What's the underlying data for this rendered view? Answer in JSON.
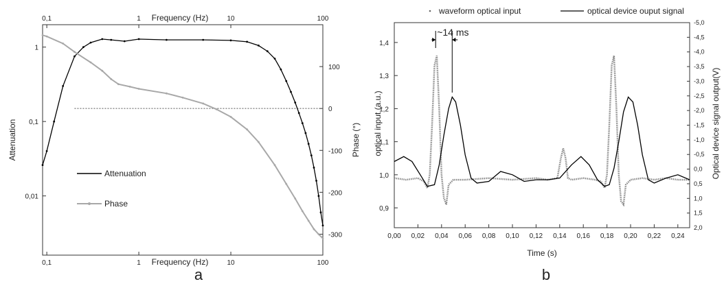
{
  "chart_data": [
    {
      "type": "line",
      "panel_label": "a",
      "xlabel_bottom": "Frequency (Hz)",
      "xlabel_top": "Frequency (Hz)",
      "ylabel_left": "Attenuation",
      "ylabel_right": "Phase (°)",
      "x_scale": "log",
      "xlim": [
        0.09,
        100
      ],
      "x_ticks": [
        {
          "v": 0.1,
          "label": "0,1"
        },
        {
          "v": 1,
          "label": "1"
        },
        {
          "v": 10,
          "label": "10"
        },
        {
          "v": 100,
          "label": "100"
        }
      ],
      "y_left_scale": "log",
      "y_left_lim": [
        0.0016,
        2
      ],
      "y_left_ticks": [
        {
          "v": 1,
          "label": "1"
        },
        {
          "v": 0.1,
          "label": "0,1"
        },
        {
          "v": 0.01,
          "label": "0,01"
        }
      ],
      "y_right_lim": [
        -350,
        200
      ],
      "y_right_ticks": [
        {
          "v": 100,
          "label": "100"
        },
        {
          "v": 0,
          "label": "0"
        },
        {
          "v": -100,
          "label": "-100"
        },
        {
          "v": -200,
          "label": "-200"
        },
        {
          "v": -300,
          "label": "-300"
        }
      ],
      "reference_line": {
        "axis": "right",
        "y": 0,
        "style": "dotted"
      },
      "legend_position": "lower-left",
      "series": [
        {
          "name": "Attenuation",
          "axis": "left",
          "color": "#000000",
          "x": [
            0.09,
            0.1,
            0.12,
            0.15,
            0.2,
            0.25,
            0.3,
            0.4,
            0.5,
            0.7,
            1,
            2,
            5,
            10,
            15,
            20,
            25,
            30,
            35,
            40,
            45,
            50,
            55,
            60,
            65,
            70,
            75,
            80,
            85,
            90,
            95,
            100
          ],
          "y": [
            0.026,
            0.04,
            0.1,
            0.3,
            0.75,
            1.0,
            1.15,
            1.28,
            1.25,
            1.2,
            1.28,
            1.25,
            1.25,
            1.23,
            1.18,
            1.05,
            0.88,
            0.7,
            0.5,
            0.35,
            0.25,
            0.18,
            0.13,
            0.095,
            0.07,
            0.05,
            0.035,
            0.024,
            0.016,
            0.01,
            0.006,
            0.004
          ]
        },
        {
          "name": "Phase",
          "axis": "right",
          "color": "#a8a8a8",
          "x": [
            0.09,
            0.1,
            0.15,
            0.2,
            0.3,
            0.4,
            0.5,
            0.6,
            0.8,
            1,
            2,
            3,
            5,
            7,
            10,
            15,
            20,
            30,
            40,
            50,
            60,
            70,
            80,
            90,
            100
          ],
          "y": [
            175,
            172,
            155,
            135,
            110,
            90,
            70,
            58,
            52,
            47,
            36,
            26,
            12,
            -2,
            -20,
            -50,
            -80,
            -135,
            -180,
            -215,
            -245,
            -268,
            -288,
            -300,
            -310
          ]
        }
      ]
    },
    {
      "type": "line",
      "panel_label": "b",
      "xlabel": "Time (s)",
      "ylabel_left": "optical input (a.u.)",
      "ylabel_right": "Optical device signal output(V)",
      "annotation": "~14 ms",
      "xlim": [
        0.0,
        0.25
      ],
      "x_ticks": [
        {
          "v": 0.0,
          "label": "0,00"
        },
        {
          "v": 0.02,
          "label": "0,02"
        },
        {
          "v": 0.04,
          "label": "0,04"
        },
        {
          "v": 0.06,
          "label": "0,06"
        },
        {
          "v": 0.08,
          "label": "0,08"
        },
        {
          "v": 0.1,
          "label": "0,10"
        },
        {
          "v": 0.12,
          "label": "0,12"
        },
        {
          "v": 0.14,
          "label": "0,14"
        },
        {
          "v": 0.16,
          "label": "0,16"
        },
        {
          "v": 0.18,
          "label": "0,18"
        },
        {
          "v": 0.2,
          "label": "0,20"
        },
        {
          "v": 0.22,
          "label": "0,22"
        },
        {
          "v": 0.24,
          "label": "0,24"
        }
      ],
      "y_left_lim": [
        0.84,
        1.46
      ],
      "y_left_ticks": [
        {
          "v": 0.9,
          "label": "0,9"
        },
        {
          "v": 1.0,
          "label": "1,0"
        },
        {
          "v": 1.1,
          "label": "1,1"
        },
        {
          "v": 1.2,
          "label": "1,2"
        },
        {
          "v": 1.3,
          "label": "1,3"
        },
        {
          "v": 1.4,
          "label": "1,4"
        }
      ],
      "y_right_lim": [
        2.0,
        -5.0
      ],
      "y_right_ticks": [
        {
          "v": -5.0,
          "label": "-5,0"
        },
        {
          "v": -4.5,
          "label": "-4,5"
        },
        {
          "v": -4.0,
          "label": "-4,0"
        },
        {
          "v": -3.5,
          "label": "-3,5"
        },
        {
          "v": -3.0,
          "label": "-3,0"
        },
        {
          "v": -2.5,
          "label": "-2,5"
        },
        {
          "v": -2.0,
          "label": "-2,0"
        },
        {
          "v": -1.5,
          "label": "-1,5"
        },
        {
          "v": -1.0,
          "label": "-1,0"
        },
        {
          "v": -0.5,
          "label": "-0,5"
        },
        {
          "v": 0.0,
          "label": "0,0"
        },
        {
          "v": 0.5,
          "label": "0,5"
        },
        {
          "v": 1.0,
          "label": "1,0"
        },
        {
          "v": 1.5,
          "label": "1,5"
        },
        {
          "v": 2.0,
          "label": "2,0"
        }
      ],
      "legend_position": "top",
      "series": [
        {
          "name": "waveform optical input",
          "axis": "left",
          "color": "#888888",
          "style": "dotted",
          "x": [
            0.0,
            0.01,
            0.02,
            0.025,
            0.028,
            0.03,
            0.032,
            0.034,
            0.036,
            0.038,
            0.04,
            0.042,
            0.044,
            0.046,
            0.05,
            0.06,
            0.08,
            0.1,
            0.12,
            0.13,
            0.138,
            0.141,
            0.143,
            0.145,
            0.147,
            0.15,
            0.16,
            0.17,
            0.175,
            0.178,
            0.18,
            0.182,
            0.184,
            0.186,
            0.188,
            0.19,
            0.192,
            0.194,
            0.196,
            0.2,
            0.21,
            0.22,
            0.23,
            0.24,
            0.25
          ],
          "y": [
            0.99,
            0.985,
            0.99,
            0.98,
            0.96,
            1.0,
            1.15,
            1.33,
            1.36,
            1.2,
            1.0,
            0.93,
            0.91,
            0.97,
            0.985,
            0.985,
            0.99,
            0.985,
            0.99,
            0.985,
            0.99,
            1.05,
            1.08,
            1.05,
            0.99,
            0.985,
            0.99,
            0.985,
            0.98,
            0.96,
            1.0,
            1.15,
            1.33,
            1.36,
            1.2,
            1.0,
            0.92,
            0.91,
            0.97,
            0.985,
            0.99,
            0.985,
            0.99,
            0.985,
            0.985
          ]
        },
        {
          "name": "optical device ouput signal",
          "axis": "left",
          "color": "#000000",
          "style": "solid",
          "x": [
            0.0,
            0.008,
            0.015,
            0.022,
            0.028,
            0.034,
            0.038,
            0.042,
            0.046,
            0.049,
            0.052,
            0.056,
            0.06,
            0.065,
            0.07,
            0.08,
            0.09,
            0.1,
            0.11,
            0.12,
            0.13,
            0.14,
            0.15,
            0.158,
            0.165,
            0.172,
            0.178,
            0.182,
            0.186,
            0.19,
            0.194,
            0.198,
            0.202,
            0.206,
            0.21,
            0.215,
            0.22,
            0.23,
            0.24,
            0.25
          ],
          "y": [
            1.04,
            1.055,
            1.04,
            1.0,
            0.965,
            0.97,
            1.03,
            1.12,
            1.2,
            1.235,
            1.22,
            1.15,
            1.06,
            0.99,
            0.975,
            0.98,
            1.01,
            1.0,
            0.98,
            0.985,
            0.985,
            0.99,
            1.03,
            1.055,
            1.03,
            0.985,
            0.965,
            0.97,
            1.02,
            1.1,
            1.19,
            1.235,
            1.22,
            1.15,
            1.06,
            0.985,
            0.975,
            0.99,
            1.0,
            0.985
          ]
        }
      ]
    }
  ]
}
